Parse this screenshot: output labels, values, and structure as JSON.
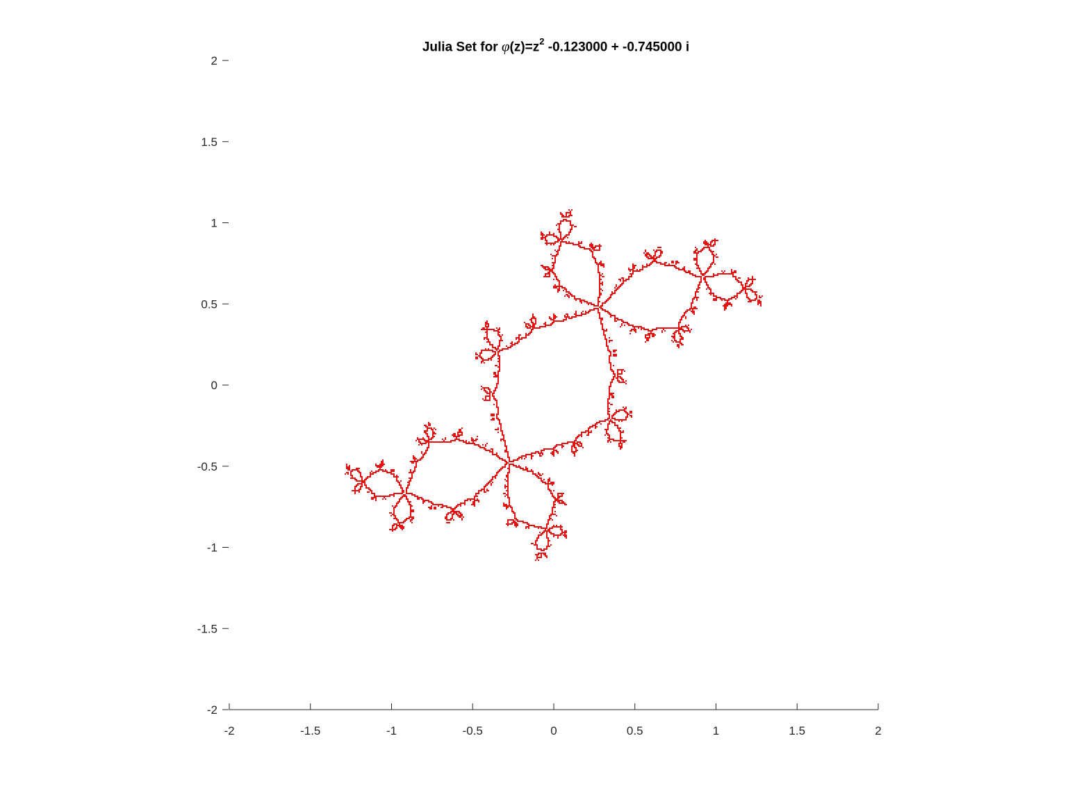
{
  "chart_data": {
    "type": "scatter",
    "title": {
      "prefix": "Julia Set for ",
      "phi": "φ",
      "mid": "(z)=z",
      "exponent": "2",
      "suffix": " -0.123000 + -0.745000 i"
    },
    "xlabel": "",
    "ylabel": "",
    "xlim": [
      -2,
      2
    ],
    "ylim": [
      -2,
      2
    ],
    "xticks": [
      -2,
      -1.5,
      -1,
      -0.5,
      0,
      0.5,
      1,
      1.5,
      2
    ],
    "yticks": [
      -2,
      -1.5,
      -1,
      -0.5,
      0,
      0.5,
      1,
      1.5,
      2
    ],
    "xtick_labels": [
      "-2",
      "-1.5",
      "-1",
      "-0.5",
      "0",
      "0.5",
      "1",
      "1.5",
      "2"
    ],
    "ytick_labels": [
      "-2",
      "-1.5",
      "-1",
      "-0.5",
      "0",
      "0.5",
      "1",
      "1.5",
      "2"
    ],
    "grid": false,
    "box": false,
    "series": [
      {
        "color": "#e8110f",
        "c_real": -0.123,
        "c_imag": -0.745,
        "points_note": "boundary points of the filled Julia set for z^2 + c"
      }
    ]
  }
}
